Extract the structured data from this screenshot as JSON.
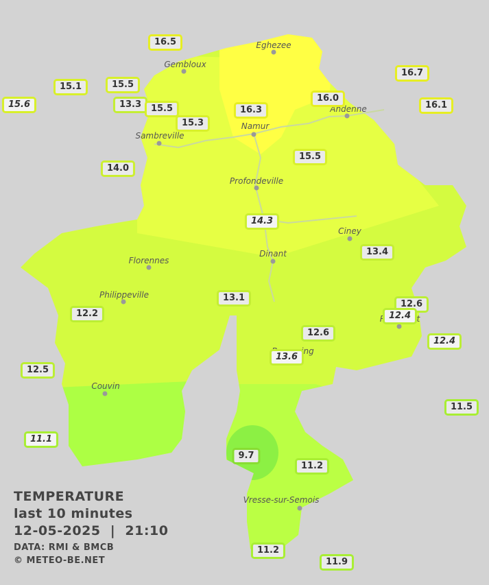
{
  "legend": {
    "title": "TEMPERATURE",
    "subtitle": "last 10 minutes",
    "datetime": "12-05-2025  |  21:10",
    "source": "DATA: RMI & BMCB",
    "credit": "© METEO-BE.NET"
  },
  "cities": [
    "Eghezee",
    "Gembloux",
    "Andenne",
    "Namur",
    "Sambreville",
    "Profondeville",
    "Ciney",
    "Dinant",
    "Florennes",
    "Philippeville",
    "Rochefort",
    "Beauraing",
    "Couvin",
    "Vresse-sur-Semois"
  ],
  "stations": [
    {
      "value": "16.5",
      "italic": false,
      "color": "#e6ee22"
    },
    {
      "value": "15.1",
      "italic": false,
      "color": "#d8f02a"
    },
    {
      "value": "15.5",
      "italic": false,
      "color": "#d8f02a"
    },
    {
      "value": "15.6",
      "italic": true,
      "color": "#d8f02a"
    },
    {
      "value": "13.3",
      "italic": false,
      "color": "#c4ee33"
    },
    {
      "value": "15.5",
      "italic": false,
      "color": "#d8f02a"
    },
    {
      "value": "15.3",
      "italic": false,
      "color": "#d8f02a"
    },
    {
      "value": "16.3",
      "italic": false,
      "color": "#e6ee22"
    },
    {
      "value": "16.0",
      "italic": false,
      "color": "#e6ee22"
    },
    {
      "value": "16.7",
      "italic": false,
      "color": "#e6ee22"
    },
    {
      "value": "16.1",
      "italic": false,
      "color": "#e6ee22"
    },
    {
      "value": "14.0",
      "italic": false,
      "color": "#ccef30"
    },
    {
      "value": "15.5",
      "italic": false,
      "color": "#d8f02a"
    },
    {
      "value": "14.3",
      "italic": true,
      "color": "#ccef30"
    },
    {
      "value": "13.4",
      "italic": false,
      "color": "#c4ee33"
    },
    {
      "value": "13.1",
      "italic": false,
      "color": "#c4ee33"
    },
    {
      "value": "12.6",
      "italic": false,
      "color": "#bbee33"
    },
    {
      "value": "12.4",
      "italic": true,
      "color": "#bbee33"
    },
    {
      "value": "12.2",
      "italic": false,
      "color": "#bbee33"
    },
    {
      "value": "12.6",
      "italic": false,
      "color": "#bbee33"
    },
    {
      "value": "12.4",
      "italic": true,
      "color": "#bbee33"
    },
    {
      "value": "13.6",
      "italic": true,
      "color": "#c4ee33"
    },
    {
      "value": "12.5",
      "italic": false,
      "color": "#bbee33"
    },
    {
      "value": "11.5",
      "italic": false,
      "color": "#a8ee33"
    },
    {
      "value": "11.1",
      "italic": true,
      "color": "#a8ee33"
    },
    {
      "value": "9.7",
      "italic": false,
      "color": "#88dd33"
    },
    {
      "value": "11.2",
      "italic": false,
      "color": "#a8ee33"
    },
    {
      "value": "11.2",
      "italic": false,
      "color": "#a8ee33"
    },
    {
      "value": "11.9",
      "italic": false,
      "color": "#a8ee33"
    }
  ]
}
